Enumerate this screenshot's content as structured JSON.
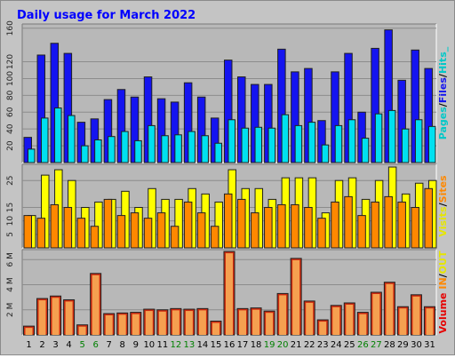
{
  "title": "Daily usage for March 2022",
  "colors": {
    "background": "#c4c4c4",
    "plot_bg": "#b8b8b8",
    "title": "#0000ff",
    "hits": "#1414f0",
    "files": "#00e0f0",
    "pages": "#00c8c8",
    "visits": "#ffff00",
    "sites": "#ff8800",
    "volume": "#e60000",
    "in": "#ff8800",
    "out": "#ffff00",
    "weekend_day": "#008000",
    "weekday": "#000000"
  },
  "legend": {
    "panel1": [
      {
        "text": "Pages",
        "color": "#00c8c8"
      },
      {
        "text": "/",
        "color": "#000000"
      },
      {
        "text": "Files",
        "color": "#1414f0"
      },
      {
        "text": "/",
        "color": "#000000"
      },
      {
        "text": "Hits_",
        "color": "#00c8c8"
      }
    ],
    "panel2": [
      {
        "text": "Visits",
        "color": "#e6e600"
      },
      {
        "text": "/",
        "color": "#000000"
      },
      {
        "text": "Sites",
        "color": "#ff8800"
      }
    ],
    "panel3": [
      {
        "text": "Volume",
        "color": "#e60000"
      },
      {
        "text": "IN",
        "color": "#ff8800"
      },
      {
        "text": "/",
        "color": "#000000"
      },
      {
        "text": "OUT",
        "color": "#e6e600"
      }
    ]
  },
  "chart_data": [
    {
      "type": "bar",
      "categories": [
        "1",
        "2",
        "3",
        "4",
        "5",
        "6",
        "7",
        "8",
        "9",
        "10",
        "11",
        "12",
        "13",
        "14",
        "15",
        "16",
        "17",
        "18",
        "19",
        "20",
        "21",
        "22",
        "23",
        "24",
        "25",
        "26",
        "27",
        "28",
        "29",
        "30",
        "31"
      ],
      "weekend_days": [
        "5",
        "6",
        "12",
        "13",
        "19",
        "20",
        "26",
        "27"
      ],
      "yticks": [
        "20",
        "40",
        "60",
        "80",
        "100",
        "120",
        "160"
      ],
      "ylim": [
        0,
        165
      ],
      "series": [
        {
          "name": "Hits",
          "values": [
            30,
            128,
            142,
            130,
            48,
            52,
            75,
            87,
            78,
            102,
            76,
            72,
            95,
            78,
            53,
            122,
            102,
            93,
            93,
            135,
            108,
            112,
            50,
            108,
            130,
            60,
            136,
            158,
            98,
            134,
            112
          ]
        },
        {
          "name": "Files",
          "values": [
            16,
            53,
            65,
            56,
            20,
            27,
            31,
            37,
            26,
            44,
            32,
            33,
            37,
            32,
            23,
            51,
            41,
            42,
            41,
            57,
            44,
            48,
            21,
            44,
            51,
            29,
            58,
            62,
            40,
            51,
            43
          ]
        }
      ]
    },
    {
      "type": "bar",
      "categories": [
        "1",
        "2",
        "3",
        "4",
        "5",
        "6",
        "7",
        "8",
        "9",
        "10",
        "11",
        "12",
        "13",
        "14",
        "15",
        "16",
        "17",
        "18",
        "19",
        "20",
        "21",
        "22",
        "23",
        "24",
        "25",
        "26",
        "27",
        "28",
        "29",
        "30",
        "31"
      ],
      "yticks": [
        "5",
        "10",
        "15",
        "25"
      ],
      "ylim": [
        0,
        31
      ],
      "series": [
        {
          "name": "Visits",
          "values": [
            12,
            27,
            29,
            25,
            15,
            17,
            18,
            21,
            15,
            22,
            18,
            18,
            22,
            20,
            17,
            29,
            22,
            22,
            18,
            26,
            26,
            26,
            13,
            25,
            26,
            18,
            25,
            30,
            20,
            24,
            25
          ]
        },
        {
          "name": "Sites",
          "values": [
            12,
            11,
            16,
            15,
            11,
            8,
            18,
            12,
            13,
            11,
            13,
            8,
            17,
            13,
            8,
            20,
            18,
            13,
            15,
            16,
            16,
            15,
            11,
            17,
            19,
            12,
            17,
            19,
            17,
            15,
            22
          ]
        }
      ]
    },
    {
      "type": "bar",
      "categories": [
        "1",
        "2",
        "3",
        "4",
        "5",
        "6",
        "7",
        "8",
        "9",
        "10",
        "11",
        "12",
        "13",
        "14",
        "15",
        "16",
        "17",
        "18",
        "19",
        "20",
        "21",
        "22",
        "23",
        "24",
        "25",
        "26",
        "27",
        "28",
        "29",
        "30",
        "31"
      ],
      "yticks": [
        "2 M",
        "4 M",
        "6 M"
      ],
      "ylim": [
        0,
        6800000
      ],
      "series": [
        {
          "name": "Volume",
          "values": [
            700000,
            2900000,
            3100000,
            2800000,
            800000,
            4900000,
            1700000,
            1750000,
            1800000,
            2050000,
            2000000,
            2100000,
            2050000,
            2100000,
            1100000,
            6650000,
            2100000,
            2150000,
            1900000,
            3300000,
            6100000,
            2700000,
            1200000,
            2350000,
            2550000,
            1800000,
            3400000,
            4200000,
            2250000,
            3200000,
            2250000
          ]
        }
      ]
    }
  ]
}
